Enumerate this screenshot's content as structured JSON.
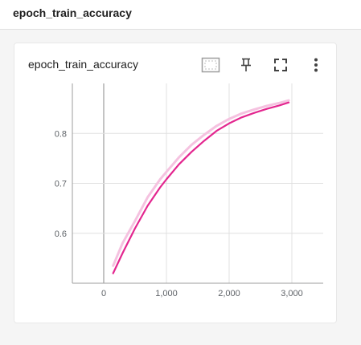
{
  "section": {
    "title": "epoch_train_accuracy"
  },
  "card": {
    "title": "epoch_train_accuracy",
    "tools": [
      {
        "name": "fit-domain-icon"
      },
      {
        "name": "pin-icon"
      },
      {
        "name": "fullscreen-icon"
      },
      {
        "name": "more-vert-icon"
      }
    ]
  },
  "colors": {
    "smoothed": "#e3268f",
    "raw": "#f5c2e0",
    "grid": "#e0e0e0",
    "axis": "#9e9e9e"
  },
  "chart_data": {
    "type": "line",
    "title": "",
    "xlabel": "",
    "ylabel": "",
    "xlim": [
      -500,
      3500
    ],
    "ylim": [
      0.5,
      0.9
    ],
    "x_ticks": [
      0,
      1000,
      2000,
      3000
    ],
    "x_tick_labels": [
      "0",
      "1,000",
      "2,000",
      "3,000"
    ],
    "y_ticks": [
      0.6,
      0.7,
      0.8
    ],
    "y_tick_labels": [
      "0.6",
      "0.7",
      "0.8"
    ],
    "grid": true,
    "series": [
      {
        "x": [
          150,
          300,
          500,
          700,
          900,
          1000,
          1200,
          1400,
          1600,
          1800,
          2000,
          2200,
          2400,
          2600,
          2800,
          2950
        ],
        "y": [
          0.52,
          0.56,
          0.61,
          0.655,
          0.692,
          0.708,
          0.738,
          0.763,
          0.785,
          0.805,
          0.82,
          0.832,
          0.841,
          0.849,
          0.856,
          0.862
        ]
      },
      {
        "x": [
          150,
          300,
          500,
          700,
          900,
          1000,
          1200,
          1400,
          1600,
          1800,
          2000,
          2200,
          2400,
          2600,
          2800,
          2950
        ],
        "y": [
          0.535,
          0.58,
          0.625,
          0.672,
          0.708,
          0.723,
          0.752,
          0.777,
          0.797,
          0.815,
          0.829,
          0.84,
          0.848,
          0.855,
          0.861,
          0.866
        ]
      }
    ]
  }
}
